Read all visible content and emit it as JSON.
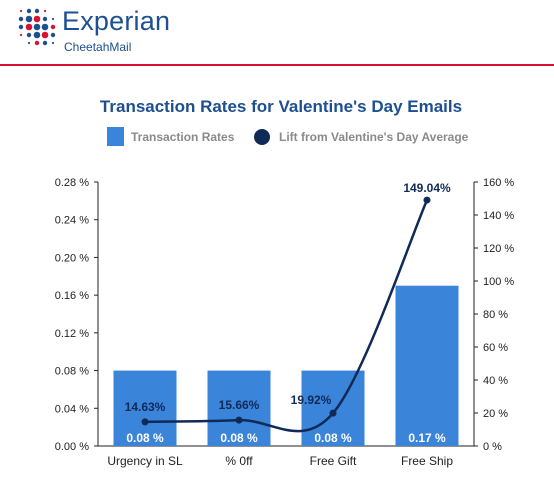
{
  "brand": {
    "name": "Experian",
    "product": "CheetahMail"
  },
  "colors": {
    "bar": "#3a84d9",
    "line": "#0f2a57",
    "brand_blue": "#1d4f91",
    "rule": "#d9102e",
    "title": "#1d4f91"
  },
  "chart_data": {
    "type": "bar",
    "title": "Transaction Rates for Valentine's Day Emails",
    "categories": [
      "Urgency in SL",
      "% 0ff",
      "Free Gift",
      "Free Ship"
    ],
    "series": [
      {
        "name": "Transaction Rates",
        "type": "bar",
        "axis": "left",
        "values": [
          0.08,
          0.08,
          0.08,
          0.17
        ],
        "labels": [
          "0.08 %",
          "0.08 %",
          "0.08 %",
          "0.17 %"
        ]
      },
      {
        "name": "Lift from Valentine's Day Average",
        "type": "line",
        "axis": "right",
        "values": [
          14.63,
          15.66,
          19.92,
          149.04
        ],
        "labels": [
          "14.63%",
          "15.66%",
          "19.92%",
          "149.04%"
        ]
      }
    ],
    "y_left": {
      "min": 0,
      "max": 0.28,
      "ticks": [
        "0.00 %",
        "0.04 %",
        "0.08 %",
        "0.12 %",
        "0.16 %",
        "0.20 %",
        "0.24 %",
        "0.28 %"
      ]
    },
    "y_right": {
      "min": 0,
      "max": 160,
      "ticks": [
        "0 %",
        "20 %",
        "40 %",
        "60 %",
        "80 %",
        "100 %",
        "120 %",
        "140 %",
        "160 %"
      ]
    },
    "legend_position": "top",
    "grid": false
  }
}
